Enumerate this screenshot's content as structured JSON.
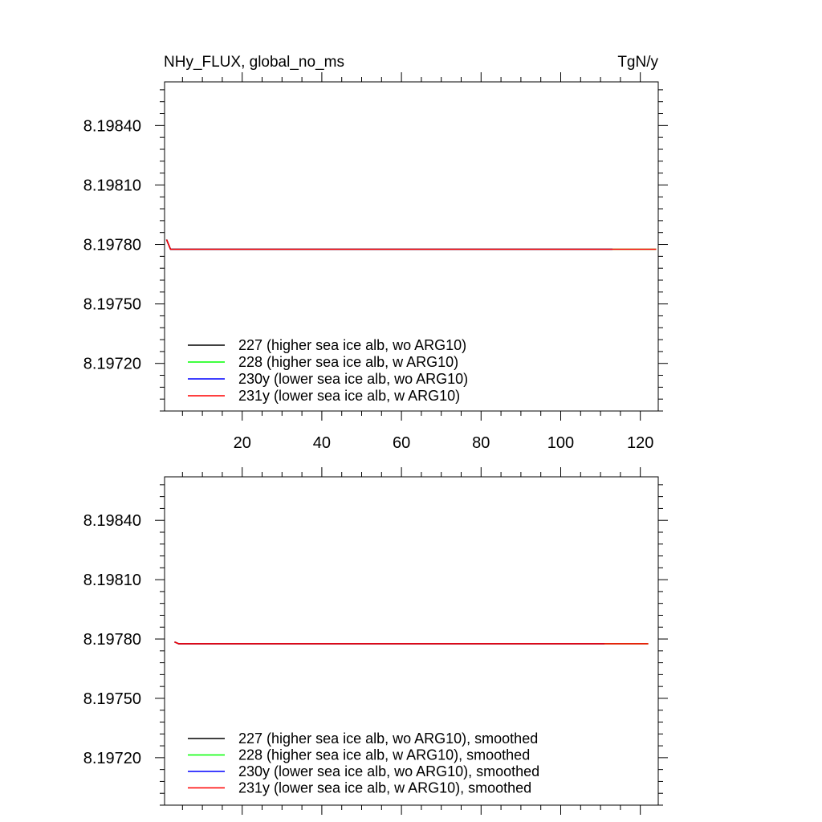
{
  "header": {
    "left_title": "NHy_FLUX, global_no_ms",
    "right_title": "TgN/y"
  },
  "colors": {
    "227": "#000000",
    "228": "#00ff00",
    "230y": "#0000ff",
    "231y": "#ff0000"
  },
  "chart_data": [
    {
      "type": "line",
      "xlim": [
        0.5,
        124.5
      ],
      "ylim": [
        8.19696,
        8.19862
      ],
      "x_ticks": [
        20,
        40,
        60,
        80,
        100,
        120
      ],
      "x_tick_labels": [
        "20",
        "40",
        "60",
        "80",
        "100",
        "120"
      ],
      "y_ticks": [
        8.1972,
        8.1975,
        8.1978,
        8.1981,
        8.1984
      ],
      "y_tick_labels": [
        "8.19720",
        "8.19750",
        "8.19780",
        "8.19810",
        "8.19840"
      ],
      "legend_position": "bottom-left",
      "series": [
        {
          "name": "227 (higher sea ice alb, wo ARG10)",
          "color": "#000000",
          "points": [
            [
              1,
              8.197825
            ],
            [
              2,
              8.197776
            ],
            [
              113,
              8.197776
            ]
          ]
        },
        {
          "name": "228 (higher sea ice alb, w ARG10)",
          "color": "#00ff00",
          "points": [
            [
              1,
              8.197825
            ],
            [
              2,
              8.197776
            ],
            [
              124,
              8.197776
            ]
          ]
        },
        {
          "name": "230y (lower sea ice alb, wo ARG10)",
          "color": "#0000ff",
          "points": [
            [
              1,
              8.197825
            ],
            [
              2,
              8.197776
            ],
            [
              113,
              8.197776
            ]
          ]
        },
        {
          "name": "231y (lower sea ice alb, w ARG10)",
          "color": "#ff0000",
          "points": [
            [
              1,
              8.197825
            ],
            [
              2,
              8.197776
            ],
            [
              124,
              8.197776
            ]
          ]
        }
      ]
    },
    {
      "type": "line",
      "xlim": [
        0.5,
        124.5
      ],
      "ylim": [
        8.19696,
        8.19862
      ],
      "x_ticks": [
        20,
        40,
        60,
        80,
        100,
        120
      ],
      "y_ticks": [
        8.1972,
        8.1975,
        8.1978,
        8.1981,
        8.1984
      ],
      "y_tick_labels": [
        "8.19720",
        "8.19750",
        "8.19780",
        "8.19810",
        "8.19840"
      ],
      "legend_position": "bottom-left",
      "series": [
        {
          "name": "227 (higher sea ice alb, wo ARG10), smoothed",
          "color": "#000000",
          "points": [
            [
              3,
              8.197785
            ],
            [
              4,
              8.197776
            ],
            [
              111,
              8.197776
            ]
          ]
        },
        {
          "name": "228 (higher sea ice alb, w ARG10), smoothed",
          "color": "#00ff00",
          "points": [
            [
              3,
              8.197785
            ],
            [
              4,
              8.197776
            ],
            [
              122,
              8.197776
            ]
          ]
        },
        {
          "name": "230y (lower sea ice alb, wo ARG10), smoothed",
          "color": "#0000ff",
          "points": [
            [
              3,
              8.197785
            ],
            [
              4,
              8.197776
            ],
            [
              111,
              8.197776
            ]
          ]
        },
        {
          "name": "231y (lower sea ice alb, w ARG10), smoothed",
          "color": "#ff0000",
          "points": [
            [
              3,
              8.197785
            ],
            [
              4,
              8.197776
            ],
            [
              122,
              8.197776
            ]
          ]
        }
      ]
    }
  ]
}
